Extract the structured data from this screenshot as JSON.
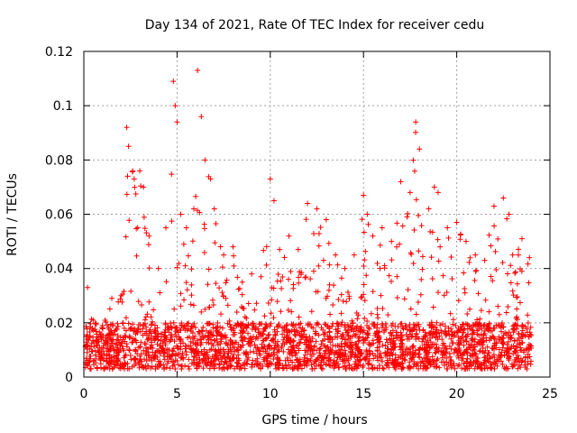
{
  "chart_data": {
    "type": "scatter",
    "title": "Day 134 of 2021, Rate Of TEC Index for receiver cedu",
    "xlabel": "GPS time / hours",
    "ylabel": "ROTI / TECUs",
    "xlim": [
      0,
      25
    ],
    "ylim": [
      0,
      0.12
    ],
    "x_ticks": [
      "0",
      "5",
      "10",
      "15",
      "20",
      "25"
    ],
    "y_ticks": [
      "0",
      "0.02",
      "0.04",
      "0.06",
      "0.08",
      "0.1",
      "0.12"
    ],
    "grid": true,
    "legend": "none",
    "marker": "+",
    "color": "#ff0000",
    "series": [
      {
        "x_hours": [
          0.2,
          0.5,
          1.0,
          1.5,
          2.0,
          2.3,
          2.4,
          2.7,
          3.0,
          3.2,
          3.5,
          4.0,
          4.4,
          4.8,
          4.9,
          5.0,
          5.2,
          5.5,
          5.9,
          6.1,
          6.3,
          6.5,
          6.8,
          7.0,
          7.5,
          8.0,
          8.5,
          9.0,
          9.5,
          10.0,
          10.2,
          10.5,
          11.0,
          11.5,
          12.0,
          12.5,
          13.0,
          13.5,
          14.0,
          14.5,
          15.0,
          15.2,
          15.5,
          16.0,
          16.5,
          17.0,
          17.5,
          17.8,
          18.0,
          18.5,
          18.8,
          19.0,
          19.5,
          20.0,
          20.5,
          21.0,
          21.5,
          22.0,
          22.5,
          22.8,
          23.0,
          23.5,
          23.9
        ],
        "roti_peaks": [
          0.033,
          0.021,
          0.019,
          0.029,
          0.03,
          0.092,
          0.085,
          0.073,
          0.076,
          0.07,
          0.052,
          0.04,
          0.055,
          0.109,
          0.1,
          0.094,
          0.06,
          0.055,
          0.062,
          0.113,
          0.096,
          0.08,
          0.073,
          0.062,
          0.045,
          0.048,
          0.035,
          0.038,
          0.037,
          0.073,
          0.065,
          0.047,
          0.052,
          0.047,
          0.064,
          0.062,
          0.058,
          0.045,
          0.04,
          0.045,
          0.067,
          0.06,
          0.052,
          0.055,
          0.05,
          0.072,
          0.068,
          0.094,
          0.084,
          0.062,
          0.07,
          0.068,
          0.055,
          0.057,
          0.05,
          0.045,
          0.043,
          0.063,
          0.066,
          0.06,
          0.045,
          0.051,
          0.044
        ]
      }
    ]
  }
}
